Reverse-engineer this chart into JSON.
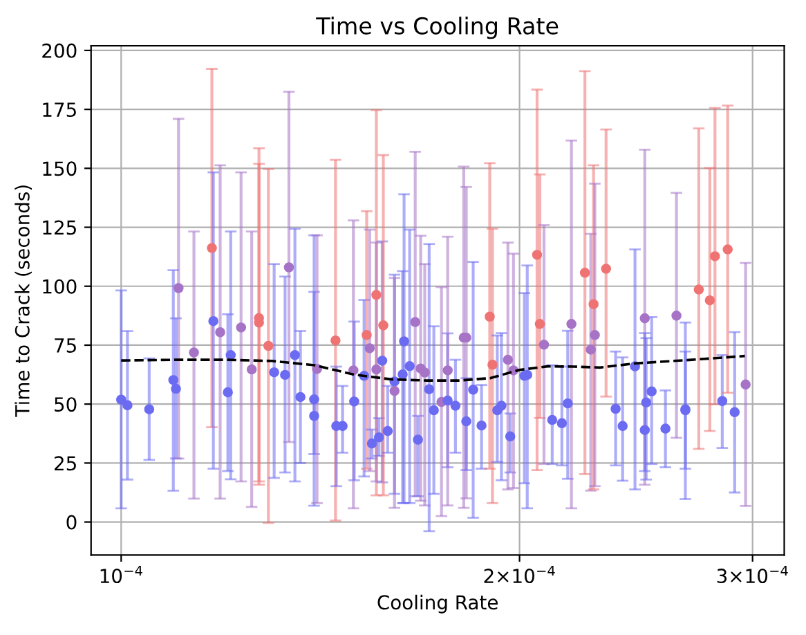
{
  "chart_data": {
    "type": "scatter",
    "title": "Time vs Cooling Rate",
    "xlabel": "Cooling Rate",
    "ylabel": "Time to Crack (seconds)",
    "log": "x",
    "xlim": [
      9.49e-05,
      0.000317
    ],
    "ylim": [
      -14,
      202
    ],
    "xticks": [
      {
        "value": 0.0001,
        "label": "10$^{−4}$"
      },
      {
        "value": 0.0002,
        "label": "2×10$^{−4}$"
      },
      {
        "value": 0.0003,
        "label": "3×10$^{−4}$"
      }
    ],
    "yticks": [
      0,
      25,
      50,
      75,
      100,
      125,
      150,
      175,
      200
    ],
    "grid": true,
    "series": [
      {
        "type": "scatter",
        "marker": "circle",
        "x": [
          0.0001,
          0.0001011,
          0.000105,
          0.0001095,
          0.00011,
          0.0001105,
          0.0001135,
          0.0001171,
          0.0001174,
          0.0001188,
          0.0001204,
          0.000121,
          0.0001232,
          0.0001255,
          0.0001271,
          0.0001271,
          0.0001292,
          0.0001305,
          0.000133,
          0.0001339,
          0.0001353,
          0.0001366,
          0.0001399,
          0.0001399,
          0.0001406,
          0.0001452,
          0.0001454,
          0.000147,
          0.0001498,
          0.00015,
          0.0001526,
          0.0001533,
          0.0001541,
          0.0001547,
          0.0001559,
          0.0001559,
          0.0001566,
          0.0001575,
          0.0001578,
          0.000159,
          0.0001609,
          0.0001609,
          0.0001632,
          0.0001636,
          0.0001652,
          0.0001668,
          0.0001676,
          0.0001684,
          0.0001696,
          0.0001709,
          0.0001723,
          0.0001746,
          0.0001765,
          0.0001765,
          0.0001789,
          0.0001815,
          0.0001823,
          0.0001823,
          0.0001845,
          0.0001872,
          0.0001899,
          0.0001908,
          0.0001924,
          0.0001938,
          0.000196,
          0.0001968,
          0.0001979,
          0.0002017,
          0.0002027,
          0.0002062,
          0.0002072,
          0.0002087,
          0.0002117,
          0.0002153,
          0.0002175,
          0.0002189,
          0.0002241,
          0.0002264,
          0.0002275,
          0.000228,
          0.0002325,
          0.0002364,
          0.0002393,
          0.0002445,
          0.0002487,
          0.0002487,
          0.0002493,
          0.0002517,
          0.0002578,
          0.0002628,
          0.0002669,
          0.0002669,
          0.0002732,
          0.0002785,
          0.000281,
          0.0002846,
          0.0002873,
          0.0002908,
          0.0002964
        ],
        "values": [
          51.9,
          49.5,
          47.8,
          60.2,
          56.5,
          99.2,
          71.9,
          116.2,
          85.2,
          80.5,
          55,
          70.8,
          82.5,
          64.7,
          86.5,
          84.6,
          74.7,
          63.5,
          62.4,
          108,
          70.8,
          53,
          52,
          45,
          64.9,
          77,
          40.7,
          40.7,
          64.3,
          51.1,
          62,
          79.3,
          73.7,
          33.3,
          96.3,
          64.7,
          35.9,
          68.4,
          83.4,
          38.6,
          59.6,
          55.6,
          62.6,
          76.6,
          66.1,
          84.8,
          34.9,
          65.1,
          63.4,
          56.3,
          47.4,
          50.9,
          51.5,
          64.3,
          49.3,
          78.2,
          78.2,
          42.7,
          56.1,
          40.9,
          87.1,
          66.7,
          47.4,
          49.3,
          68.8,
          36.3,
          64.3,
          62,
          62.4,
          113.3,
          84,
          75.2,
          43.3,
          41.9,
          50.3,
          84,
          105.7,
          73.1,
          92.4,
          79.3,
          107.4,
          48,
          40.7,
          66,
          86.4,
          39,
          50.7,
          55.4,
          39.6,
          87.5,
          47.4,
          47.8,
          98.6,
          94,
          112.7,
          51.3,
          115.6,
          46.6,
          58.3
        ],
        "errors": [
          [
            5.8,
            98.2
          ],
          [
            18,
            81
          ],
          [
            26.3,
            69.4
          ],
          [
            13.3,
            106.8
          ],
          [
            26.9,
            86.4
          ],
          [
            26.9,
            171
          ],
          [
            9.9,
            123.2
          ],
          [
            40.2,
            192.2
          ],
          [
            22.6,
            148.3
          ],
          [
            9.9,
            151.3
          ],
          [
            21.6,
            88.1
          ],
          [
            18.1,
            123.2
          ],
          [
            17.2,
            148.3
          ],
          [
            6.4,
            123.2
          ],
          [
            17.2,
            158.5
          ],
          [
            15.8,
            151.9
          ],
          [
            -0.4,
            149.7
          ],
          [
            18.7,
            109.4
          ],
          [
            21,
            104.1
          ],
          [
            33.9,
            182.5
          ],
          [
            17.2,
            124.4
          ],
          [
            25,
            81
          ],
          [
            6.9,
            97.6
          ],
          [
            28.8,
            121.6
          ],
          [
            8,
            121.6
          ],
          [
            0.6,
            153.6
          ],
          [
            15.2,
            65.9
          ],
          [
            29.4,
            57.7
          ],
          [
            5.8,
            127.9
          ],
          [
            17.7,
            85
          ],
          [
            19.3,
            94.2
          ],
          [
            22.6,
            131.8
          ],
          [
            21.6,
            124
          ],
          [
            26.9,
            39.2
          ],
          [
            11.3,
            174.7
          ],
          [
            17.2,
            118.5
          ],
          [
            28,
            44
          ],
          [
            16.8,
            119
          ],
          [
            11.3,
            155.6
          ],
          [
            29.4,
            57.7
          ],
          [
            11.9,
            104.9
          ],
          [
            6,
            103.5
          ],
          [
            8,
            106.4
          ],
          [
            8,
            139
          ],
          [
            8,
            124
          ],
          [
            10.9,
            157
          ],
          [
            10.9,
            45
          ],
          [
            9,
            121.4
          ],
          [
            7,
            109.4
          ],
          [
            -3.9,
            117.9
          ],
          [
            11.9,
            83
          ],
          [
            2.5,
            99.6
          ],
          [
            23.2,
            80
          ],
          [
            7,
            121
          ],
          [
            29.4,
            68.8
          ],
          [
            6,
            150.7
          ],
          [
            10,
            142.1
          ],
          [
            22,
            61
          ],
          [
            1.8,
            110.3
          ],
          [
            22.6,
            58.1
          ],
          [
            22.6,
            152.2
          ],
          [
            8,
            124.4
          ],
          [
            25.5,
            79.1
          ],
          [
            17.7,
            80.1
          ],
          [
            13.8,
            118.5
          ],
          [
            21,
            46
          ],
          [
            14.4,
            113.8
          ],
          [
            16.4,
            97.1
          ],
          [
            5.8,
            108.8
          ],
          [
            22,
            183.4
          ],
          [
            44.1,
            147.4
          ],
          [
            24.6,
            125.9
          ],
          [
            24.6,
            66.5
          ],
          [
            24,
            65.9
          ],
          [
            18.3,
            81.1
          ],
          [
            5.8,
            161.8
          ],
          [
            20.3,
            191.2
          ],
          [
            13.3,
            122.2
          ],
          [
            13.8,
            151.3
          ],
          [
            15.2,
            143.5
          ],
          [
            53.2,
            166.5
          ],
          [
            24,
            72.3
          ],
          [
            17.5,
            69.8
          ],
          [
            13.8,
            115.6
          ],
          [
            15.8,
            157.9
          ],
          [
            21.6,
            80.1
          ],
          [
            18,
            78
          ],
          [
            24.6,
            86.9
          ],
          [
            23.2,
            55.8
          ],
          [
            35.7,
            139.6
          ],
          [
            9.7,
            84.6
          ],
          [
            22.6,
            72.3
          ],
          [
            31,
            166.9
          ],
          [
            38.6,
            150.1
          ],
          [
            49.9,
            175.6
          ],
          [
            31.4,
            70.8
          ],
          [
            54.8,
            176.6
          ],
          [
            12.5,
            80.5
          ],
          [
            6.8,
            109.9
          ]
        ],
        "colors": [
          "#6b6bf2",
          "#6b6bf2",
          "#6b6bf2",
          "#6b6bf2",
          "#6b6bf2",
          "#a673c6",
          "#a673c6",
          "#ef7373",
          "#6b6bf2",
          "#a673c6",
          "#6b6bf2",
          "#6b6bf2",
          "#a673c6",
          "#a673c6",
          "#ef7373",
          "#ef7373",
          "#ef7373",
          "#6b6bf2",
          "#6b6bf2",
          "#a673c6",
          "#6b6bf2",
          "#6b6bf2",
          "#6b6bf2",
          "#6b6bf2",
          "#a673c6",
          "#ef7373",
          "#6b6bf2",
          "#6b6bf2",
          "#a673c6",
          "#6b6bf2",
          "#6b6bf2",
          "#ef7373",
          "#a673c6",
          "#6b6bf2",
          "#ef7373",
          "#a673c6",
          "#6b6bf2",
          "#6b6bf2",
          "#ef7373",
          "#6b6bf2",
          "#6b6bf2",
          "#a673c6",
          "#6b6bf2",
          "#6b6bf2",
          "#6b6bf2",
          "#a673c6",
          "#6b6bf2",
          "#a673c6",
          "#a673c6",
          "#6b6bf2",
          "#6b6bf2",
          "#a673c6",
          "#6b6bf2",
          "#a673c6",
          "#6b6bf2",
          "#a673c6",
          "#a673c6",
          "#6b6bf2",
          "#6b6bf2",
          "#6b6bf2",
          "#ef7373",
          "#ef7373",
          "#6b6bf2",
          "#6b6bf2",
          "#a673c6",
          "#6b6bf2",
          "#a673c6",
          "#6b6bf2",
          "#6b6bf2",
          "#ef7373",
          "#ef7373",
          "#a673c6",
          "#6b6bf2",
          "#6b6bf2",
          "#6b6bf2",
          "#a673c6",
          "#ef7373",
          "#a673c6",
          "#ef7373",
          "#a673c6",
          "#ef7373",
          "#6b6bf2",
          "#6b6bf2",
          "#6b6bf2",
          "#a673c6",
          "#6b6bf2",
          "#6b6bf2",
          "#6b6bf2",
          "#6b6bf2",
          "#a673c6",
          "#6b6bf2",
          "#6b6bf2",
          "#ef7373",
          "#ef7373",
          "#ef7373",
          "#6b6bf2",
          "#ef7373",
          "#6b6bf2",
          "#a673c6"
        ]
      },
      {
        "type": "line",
        "color": "#000000",
        "line_style": "dashed",
        "marker": "none",
        "x": [
          0.0001,
          0.00011,
          0.00012,
          0.00013,
          0.00014,
          0.00015,
          0.00016,
          0.00017,
          0.00018,
          0.00019,
          0.0002,
          0.00021,
          0.00022,
          0.00023,
          0.000245,
          0.00027,
          0.000296
        ],
        "values": [
          68.5,
          68.8,
          68.8,
          68.3,
          66.5,
          62.5,
          60.5,
          60,
          60,
          61,
          64.5,
          66,
          65.9,
          65.5,
          67.3,
          68.8,
          70.4
        ]
      }
    ]
  }
}
